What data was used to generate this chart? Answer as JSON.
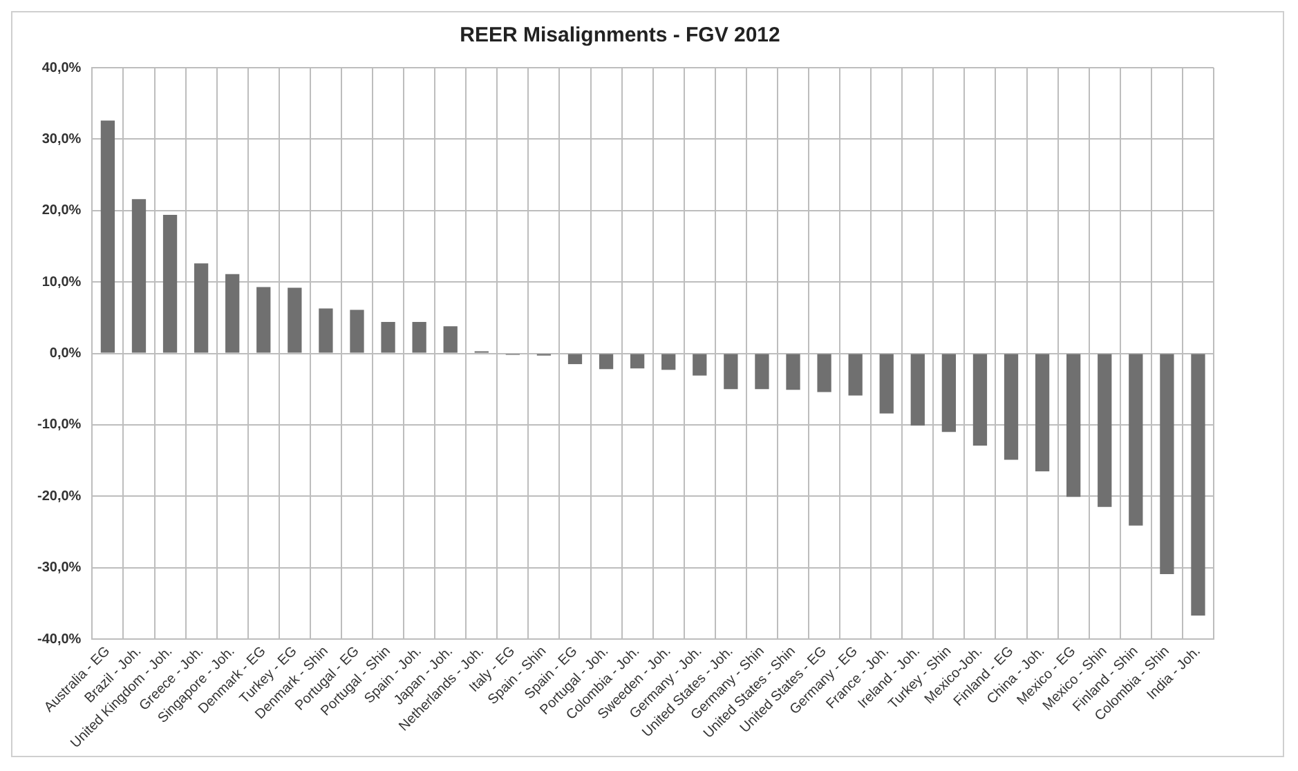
{
  "chart_data": {
    "type": "bar",
    "title": "REER Misalignments - FGV 2012",
    "categories": [
      "Australia - EG",
      "Brazil - Joh.",
      "United Kingdom - Joh.",
      "Greece - Joh.",
      "Singapore - Joh.",
      "Denmark - EG",
      "Turkey - EG",
      "Denmark - Shin",
      "Portugal - EG",
      "Portugal - Shin",
      "Spain - Joh.",
      "Japan - Joh.",
      "Netherlands - Joh.",
      "Italy - EG",
      "Spain - Shin",
      "Spain - EG",
      "Portugal - Joh.",
      "Colombia - Joh.",
      "Sweeden - Joh.",
      "Germany - Joh.",
      "United States - Joh.",
      "Germany - Shin",
      "United States - Shin",
      "United States - EG",
      "Germany - EG",
      "France - Joh.",
      "Ireland - Joh.",
      "Turkey - Shin",
      "Mexico-Joh.",
      "Finland - EG",
      "China - Joh.",
      "Mexico - EG",
      "Mexico - Shin",
      "Finland - Shin",
      "Colombia - Shin",
      "India - Joh."
    ],
    "values": [
      32.6,
      21.6,
      19.4,
      12.6,
      11.1,
      9.3,
      9.2,
      6.3,
      6.1,
      4.4,
      4.4,
      3.8,
      0.3,
      -0.2,
      -0.3,
      -1.5,
      -2.2,
      -2.1,
      -2.3,
      -3.1,
      -5.0,
      -5.0,
      -5.1,
      -5.4,
      -5.9,
      -8.4,
      -10.1,
      -11.0,
      -12.9,
      -14.9,
      -16.5,
      -20.1,
      -21.5,
      -24.1,
      -30.9,
      -36.7
    ],
    "color": "#707070",
    "ylim": [
      -40,
      40
    ],
    "yticks": [
      {
        "value": -40,
        "label": "-40,0%"
      },
      {
        "value": -30,
        "label": "-30,0%"
      },
      {
        "value": -20,
        "label": "-20,0%"
      },
      {
        "value": -10,
        "label": "-10,0%"
      },
      {
        "value": 0,
        "label": "0,0%"
      },
      {
        "value": 10,
        "label": "10,0%"
      },
      {
        "value": 20,
        "label": "20,0%"
      },
      {
        "value": 30,
        "label": "30,0%"
      },
      {
        "value": 40,
        "label": "40,0%"
      }
    ],
    "grid": true,
    "legend": false
  }
}
